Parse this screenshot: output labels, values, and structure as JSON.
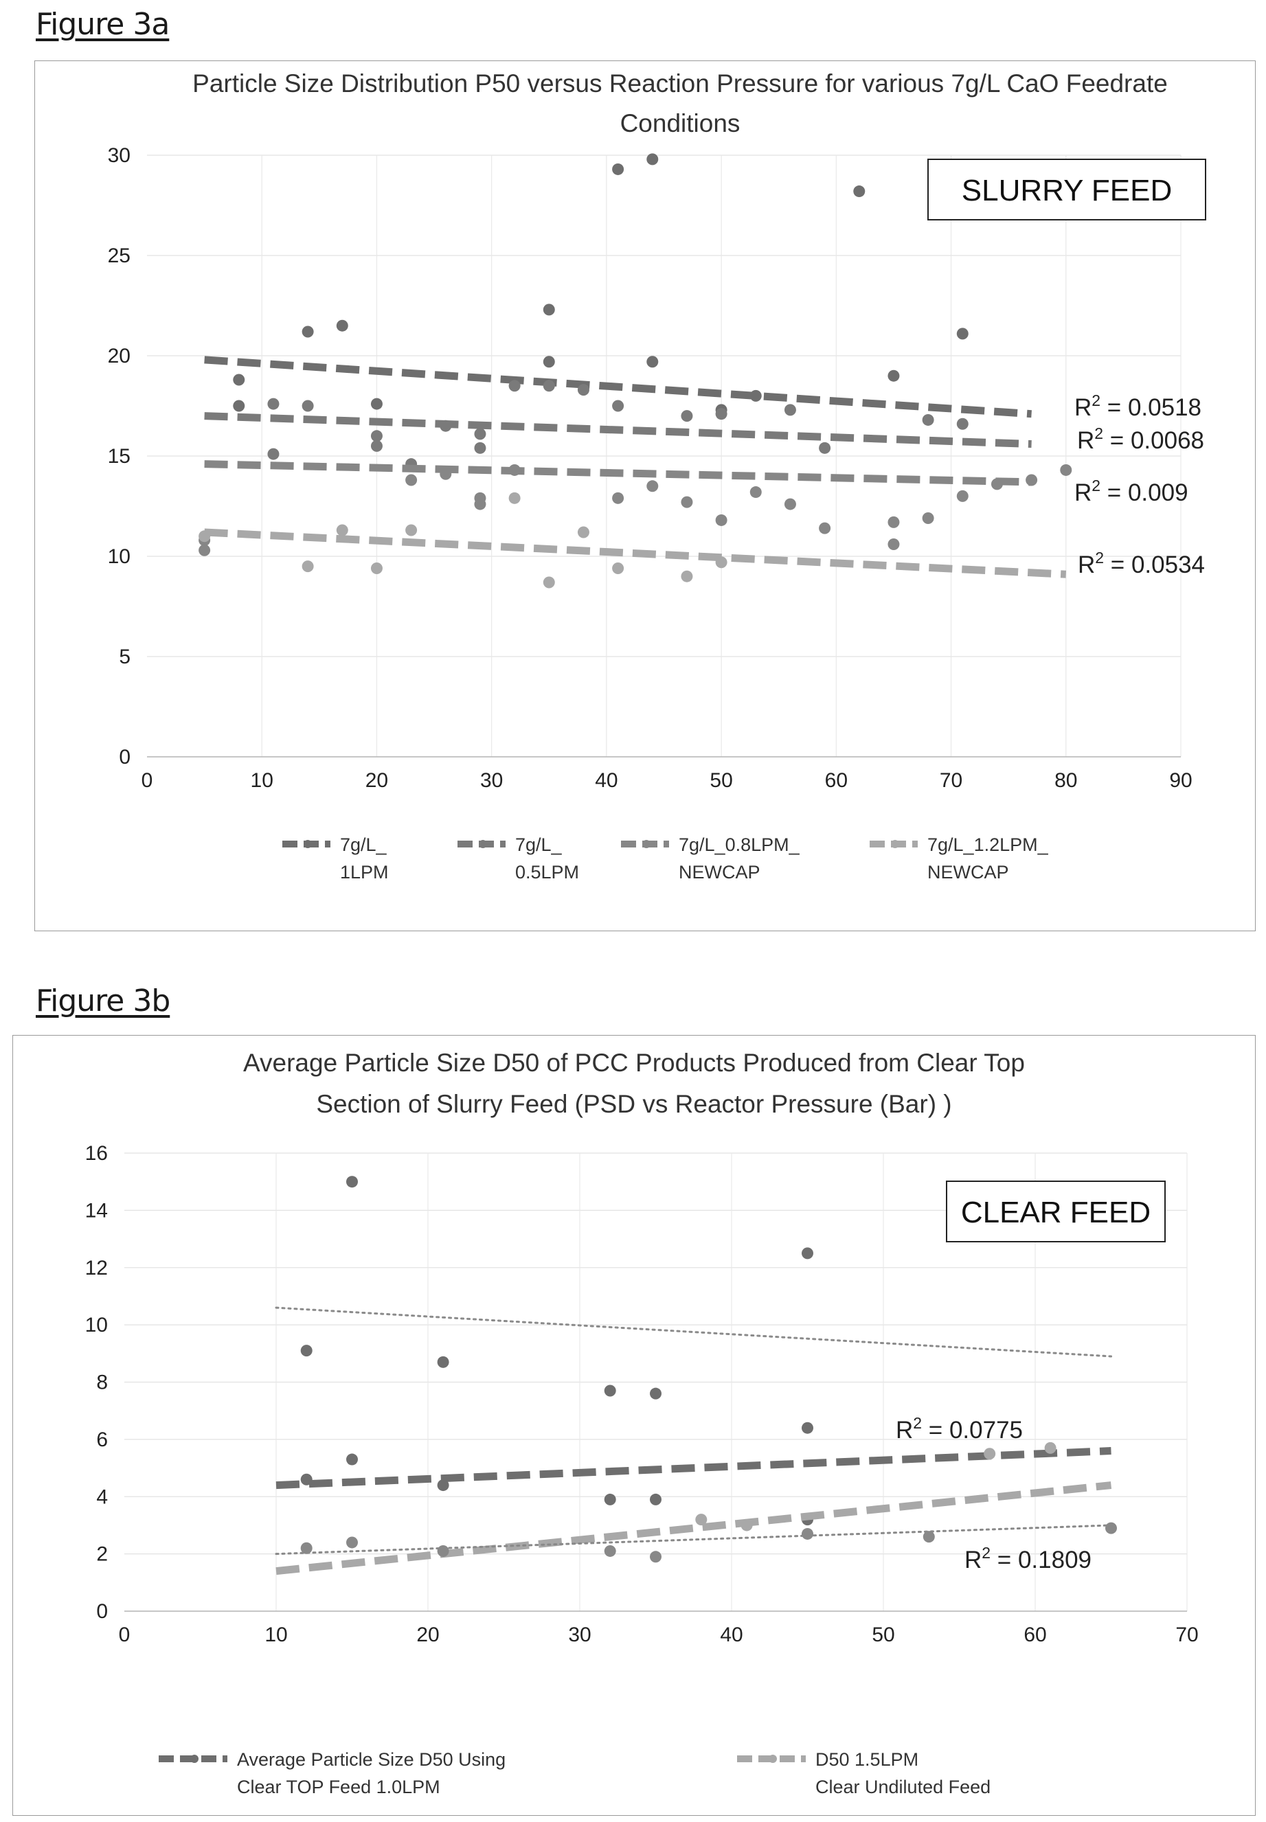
{
  "figure_a": {
    "label": "Figure 3a",
    "chart_data": {
      "type": "scatter",
      "title_lines": [
        "Particle Size Distribution P50 versus Reaction Pressure for various 7g/L CaO Feedrate",
        "Conditions"
      ],
      "xlabel": "",
      "ylabel": "",
      "xlim": [
        0,
        90
      ],
      "ylim": [
        0,
        30
      ],
      "x_ticks": [
        "0",
        "10",
        "20",
        "30",
        "40",
        "50",
        "60",
        "70",
        "80",
        "90"
      ],
      "y_ticks": [
        "0",
        "5",
        "10",
        "15",
        "20",
        "25",
        "30"
      ],
      "box_label": "SLURRY FEED",
      "legend_position": "bottom",
      "grid": true,
      "series": [
        {
          "name_lines": [
            "7g/L_",
            "1LPM"
          ],
          "color": "#6e6e6e",
          "trend_style": "dash",
          "trend": [
            [
              5,
              19.8
            ],
            [
              77,
              17.1
            ]
          ],
          "r2": "R² = 0.0518",
          "points": [
            [
              8,
              18.8
            ],
            [
              8,
              17.5
            ],
            [
              14,
              21.2
            ],
            [
              17,
              21.5
            ],
            [
              20,
              17.6
            ],
            [
              35,
              22.3
            ],
            [
              35,
              19.7
            ],
            [
              44,
              19.7
            ],
            [
              44,
              29.8
            ],
            [
              41,
              29.3
            ],
            [
              62,
              28.2
            ],
            [
              65,
              19.0
            ],
            [
              71,
              21.1
            ],
            [
              53,
              18.0
            ],
            [
              50,
              17.3
            ]
          ]
        },
        {
          "name_lines": [
            "7g/L_",
            "0.5LPM"
          ],
          "color": "#7a7a7a",
          "trend_style": "dash",
          "trend": [
            [
              5,
              17.0
            ],
            [
              77,
              15.6
            ]
          ],
          "r2": "R² = 0.0068",
          "points": [
            [
              11,
              17.6
            ],
            [
              11,
              15.1
            ],
            [
              14,
              17.5
            ],
            [
              20,
              16.0
            ],
            [
              20,
              15.5
            ],
            [
              23,
              14.6
            ],
            [
              26,
              16.5
            ],
            [
              29,
              16.1
            ],
            [
              29,
              15.4
            ],
            [
              32,
              18.5
            ],
            [
              35,
              18.5
            ],
            [
              38,
              18.3
            ],
            [
              41,
              17.5
            ],
            [
              47,
              17.0
            ],
            [
              50,
              17.1
            ],
            [
              56,
              17.3
            ],
            [
              59,
              15.4
            ],
            [
              68,
              16.8
            ],
            [
              71,
              16.6
            ]
          ]
        },
        {
          "name_lines": [
            "7g/L_0.8LPM_",
            "NEWCAP"
          ],
          "color": "#868686",
          "trend_style": "dash",
          "trend": [
            [
              5,
              14.6
            ],
            [
              77,
              13.7
            ]
          ],
          "r2": "R² = 0.009",
          "points": [
            [
              5,
              10.8
            ],
            [
              5,
              10.3
            ],
            [
              23,
              13.8
            ],
            [
              26,
              14.1
            ],
            [
              29,
              12.6
            ],
            [
              29,
              12.9
            ],
            [
              32,
              14.3
            ],
            [
              41,
              12.9
            ],
            [
              44,
              13.5
            ],
            [
              47,
              12.7
            ],
            [
              50,
              11.8
            ],
            [
              53,
              13.2
            ],
            [
              56,
              12.6
            ],
            [
              59,
              11.4
            ],
            [
              65,
              11.7
            ],
            [
              65,
              10.6
            ],
            [
              68,
              11.9
            ],
            [
              71,
              13.0
            ],
            [
              74,
              13.6
            ],
            [
              77,
              13.8
            ],
            [
              80,
              14.3
            ]
          ]
        },
        {
          "name_lines": [
            "7g/L_1.2LPM_",
            "NEWCAP"
          ],
          "color": "#a8a8a8",
          "trend_style": "dash",
          "trend": [
            [
              5,
              11.2
            ],
            [
              80,
              9.1
            ]
          ],
          "r2": "R² = 0.0534",
          "points": [
            [
              5,
              11.0
            ],
            [
              14,
              9.5
            ],
            [
              17,
              11.3
            ],
            [
              20,
              9.4
            ],
            [
              23,
              11.3
            ],
            [
              32,
              12.9
            ],
            [
              35,
              8.7
            ],
            [
              38,
              11.2
            ],
            [
              41,
              9.4
            ],
            [
              47,
              9.0
            ],
            [
              50,
              9.7
            ]
          ]
        }
      ]
    }
  },
  "figure_b": {
    "label": "Figure 3b",
    "chart_data": {
      "type": "scatter",
      "title_lines": [
        "Average Particle Size D50 of PCC Products Produced from Clear Top",
        "Section of Slurry Feed (PSD vs Reactor Pressure (Bar) )"
      ],
      "xlabel": "",
      "ylabel": "",
      "xlim": [
        0,
        70
      ],
      "ylim": [
        0,
        16
      ],
      "x_ticks": [
        "0",
        "10",
        "20",
        "30",
        "40",
        "50",
        "60",
        "70"
      ],
      "y_ticks": [
        "0",
        "2",
        "4",
        "6",
        "8",
        "10",
        "12",
        "14",
        "16"
      ],
      "box_label": "CLEAR FEED",
      "legend_position": "bottom",
      "grid": true,
      "series": [
        {
          "name_lines": [
            "Average Particle Size D50 Using",
            "Clear TOP Feed 1.0LPM"
          ],
          "color": "#6e6e6e",
          "trend_style": "dash",
          "trend": [
            [
              10,
              4.4
            ],
            [
              65,
              5.6
            ]
          ],
          "r2": "R² = 0.0775",
          "points": [
            [
              12,
              9.1
            ],
            [
              15,
              15.0
            ],
            [
              15,
              5.3
            ],
            [
              21,
              8.7
            ],
            [
              32,
              7.7
            ],
            [
              35,
              7.6
            ],
            [
              45,
              12.5
            ],
            [
              45,
              6.4
            ],
            [
              12,
              4.6
            ],
            [
              21,
              4.4
            ],
            [
              32,
              3.9
            ],
            [
              35,
              3.9
            ],
            [
              45,
              3.2
            ]
          ]
        },
        {
          "name_lines": [
            "D50 1.5LPM",
            "Clear Undiluted Feed"
          ],
          "color": "#a8a8a8",
          "trend_style": "dash",
          "trend": [
            [
              10,
              1.4
            ],
            [
              65,
              4.4
            ]
          ],
          "r2": "",
          "points": [
            [
              57,
              5.5
            ],
            [
              61,
              5.7
            ],
            [
              38,
              3.2
            ],
            [
              41,
              3.0
            ]
          ]
        },
        {
          "name_lines": [],
          "color": "#888888",
          "trend_style": "dot",
          "trend": [
            [
              10,
              2.0
            ],
            [
              65,
              3.0
            ]
          ],
          "r2": "R² = 0.1809",
          "points": [
            [
              12,
              2.2
            ],
            [
              15,
              2.4
            ],
            [
              21,
              2.1
            ],
            [
              32,
              2.1
            ],
            [
              35,
              1.9
            ],
            [
              45,
              2.7
            ],
            [
              53,
              2.6
            ],
            [
              65,
              2.9
            ]
          ]
        },
        {
          "name_lines": [],
          "color": "#8a8a8a",
          "trend_style": "dot",
          "trend": [
            [
              10,
              10.6
            ],
            [
              65,
              8.9
            ]
          ],
          "r2": "",
          "points": []
        }
      ]
    }
  }
}
